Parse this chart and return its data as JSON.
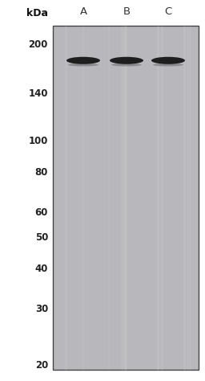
{
  "kda_label": "kDa",
  "lane_labels": [
    "A",
    "B",
    "C"
  ],
  "mw_markers": [
    200,
    140,
    100,
    80,
    60,
    50,
    40,
    30,
    20
  ],
  "gel_bg_color": "#b8b8bc",
  "gel_border_color": "#444444",
  "band_color": "#1a1a1a",
  "outer_bg_color": "#ffffff",
  "fig_width": 2.56,
  "fig_height": 4.74,
  "dpi": 100
}
